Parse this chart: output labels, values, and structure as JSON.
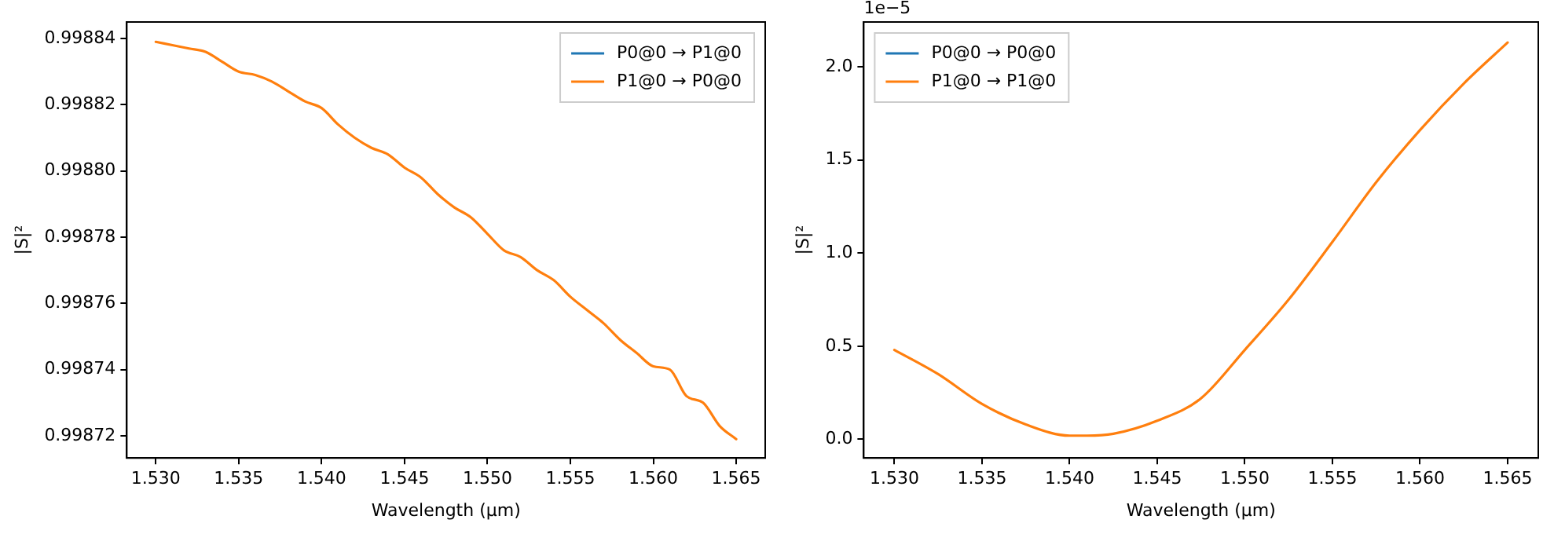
{
  "chart_data": [
    {
      "type": "line",
      "xlabel": "Wavelength (µm)",
      "ylabel": "|S|²",
      "legend": "top right",
      "grid": false,
      "x": [
        1.53,
        1.531,
        1.532,
        1.533,
        1.534,
        1.535,
        1.536,
        1.537,
        1.538,
        1.539,
        1.54,
        1.541,
        1.542,
        1.543,
        1.544,
        1.545,
        1.546,
        1.547,
        1.548,
        1.549,
        1.55,
        1.551,
        1.552,
        1.553,
        1.554,
        1.555,
        1.556,
        1.557,
        1.558,
        1.559,
        1.56,
        1.561,
        1.562,
        1.563,
        1.564,
        1.565
      ],
      "series": [
        {
          "name": "P0@0 → P1@0",
          "color": "#1f77b4",
          "values": [
            null,
            null,
            null,
            null,
            null,
            null,
            null,
            null,
            null,
            null,
            null,
            null,
            null,
            null,
            null,
            null,
            null,
            null,
            null,
            null,
            null,
            null,
            null,
            null,
            null,
            null,
            null,
            null,
            null,
            null,
            null,
            null,
            null,
            null,
            null,
            null
          ]
        },
        {
          "name": "P1@0 → P0@0",
          "color": "#ff7f0e",
          "values": [
            0.998839,
            0.998838,
            0.998837,
            0.998836,
            0.998833,
            0.99883,
            0.998829,
            0.998827,
            0.998824,
            0.998821,
            0.998819,
            0.998814,
            0.99881,
            0.998807,
            0.998805,
            0.998801,
            0.998798,
            0.998793,
            0.998789,
            0.998786,
            0.998781,
            0.998776,
            0.998774,
            0.99877,
            0.998767,
            0.998762,
            0.998758,
            0.998754,
            0.998749,
            0.998745,
            0.998741,
            0.99874,
            0.998732,
            0.99873,
            0.998723,
            0.998719
          ]
        }
      ],
      "xlim": [
        1.52825,
        1.56675
      ],
      "xticks": [
        {
          "value": 1.53,
          "label": "1.530"
        },
        {
          "value": 1.535,
          "label": "1.535"
        },
        {
          "value": 1.54,
          "label": "1.540"
        },
        {
          "value": 1.545,
          "label": "1.545"
        },
        {
          "value": 1.55,
          "label": "1.550"
        },
        {
          "value": 1.555,
          "label": "1.555"
        },
        {
          "value": 1.56,
          "label": "1.560"
        },
        {
          "value": 1.565,
          "label": "1.565"
        }
      ],
      "ylim": [
        0.9987133,
        0.998845
      ],
      "yticks": [
        0.99872,
        0.99874,
        0.99876,
        0.99878,
        {
          "value": 0.9988,
          "label": "0.99880"
        },
        0.99882,
        0.99884
      ]
    },
    {
      "type": "line",
      "xlabel": "Wavelength (µm)",
      "ylabel": "|S|²",
      "legend": "top left",
      "grid": false,
      "annotations": [
        "1e−5"
      ],
      "x": [
        1.53,
        1.5325,
        1.535,
        1.5375,
        1.54,
        1.541,
        1.5425,
        1.545,
        1.5475,
        1.55,
        1.5525,
        1.555,
        1.5575,
        1.56,
        1.5625,
        1.565
      ],
      "series": [
        {
          "name": "P0@0 → P0@0",
          "color": "#1f77b4",
          "values": [
            null,
            null,
            null,
            null,
            null,
            null,
            null,
            null,
            null,
            null,
            null,
            null,
            null,
            null,
            null,
            null
          ]
        },
        {
          "name": "P1@0 → P1@0",
          "color": "#ff7f0e",
          "values": [
            0.48,
            0.35,
            0.19,
            0.08,
            0.02,
            0.02,
            0.03,
            0.1,
            0.22,
            0.48,
            0.75,
            1.06,
            1.38,
            1.66,
            1.91,
            2.13
          ]
        }
      ],
      "xlim": [
        1.52825,
        1.56675
      ],
      "xticks": [
        {
          "value": 1.53,
          "label": "1.530"
        },
        {
          "value": 1.535,
          "label": "1.535"
        },
        {
          "value": 1.54,
          "label": "1.540"
        },
        {
          "value": 1.545,
          "label": "1.545"
        },
        {
          "value": 1.55,
          "label": "1.550"
        },
        {
          "value": 1.555,
          "label": "1.555"
        },
        {
          "value": 1.56,
          "label": "1.560"
        },
        {
          "value": 1.565,
          "label": "1.565"
        }
      ],
      "ylim": [
        -0.1,
        2.24
      ],
      "yticks": [
        {
          "value": 0,
          "label": "0.0"
        },
        0.5,
        {
          "value": 1,
          "label": "1.0"
        },
        1.5,
        {
          "value": 2,
          "label": "2.0"
        }
      ]
    }
  ]
}
